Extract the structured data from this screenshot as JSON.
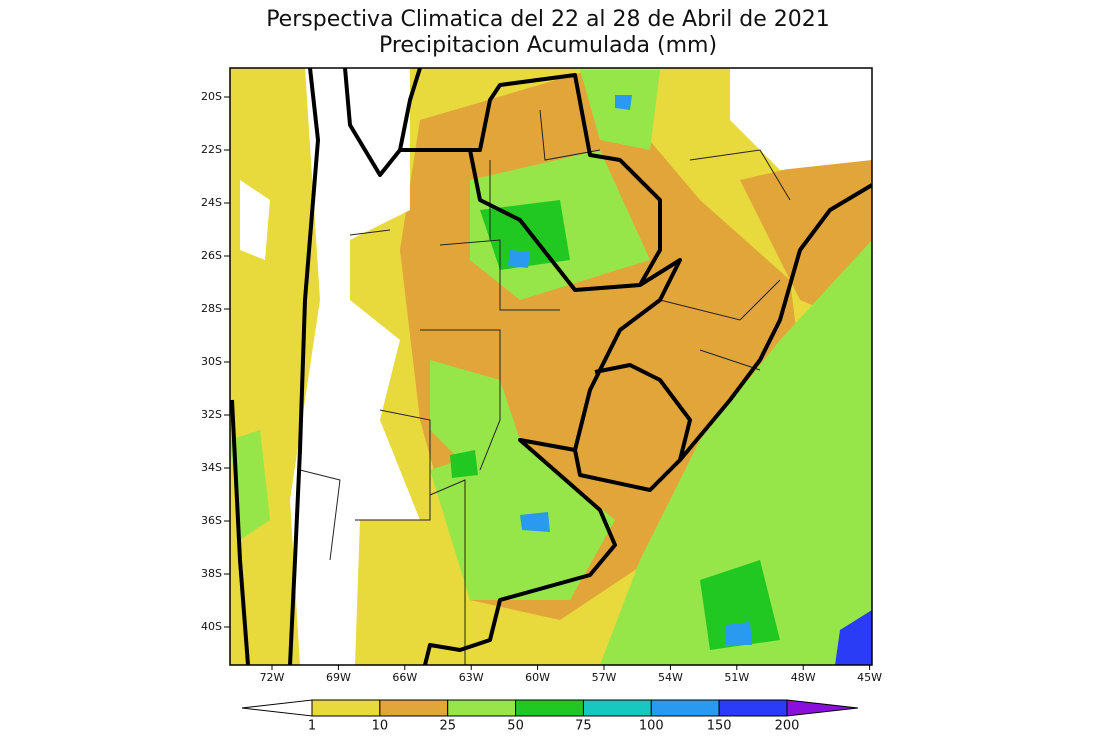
{
  "title": [
    "Perspectiva Climatica del 22 al 28 de Abril de 2021",
    "Precipitacion Acumulada (mm)"
  ],
  "lat_labels": [
    "20S",
    "22S",
    "24S",
    "26S",
    "28S",
    "30S",
    "32S",
    "34S",
    "36S",
    "38S",
    "40S"
  ],
  "lon_labels": [
    "72W",
    "69W",
    "66W",
    "63W",
    "60W",
    "57W",
    "54W",
    "51W",
    "48W",
    "45W"
  ],
  "legend": {
    "levels": [
      1,
      10,
      25,
      50,
      75,
      100,
      150,
      200
    ],
    "colors": [
      "#ffffff",
      "#e8d93c",
      "#e2a53a",
      "#96e64a",
      "#22c822",
      "#18c8c0",
      "#2a9af0",
      "#2a3cf5",
      "#8a10dc"
    ]
  }
}
